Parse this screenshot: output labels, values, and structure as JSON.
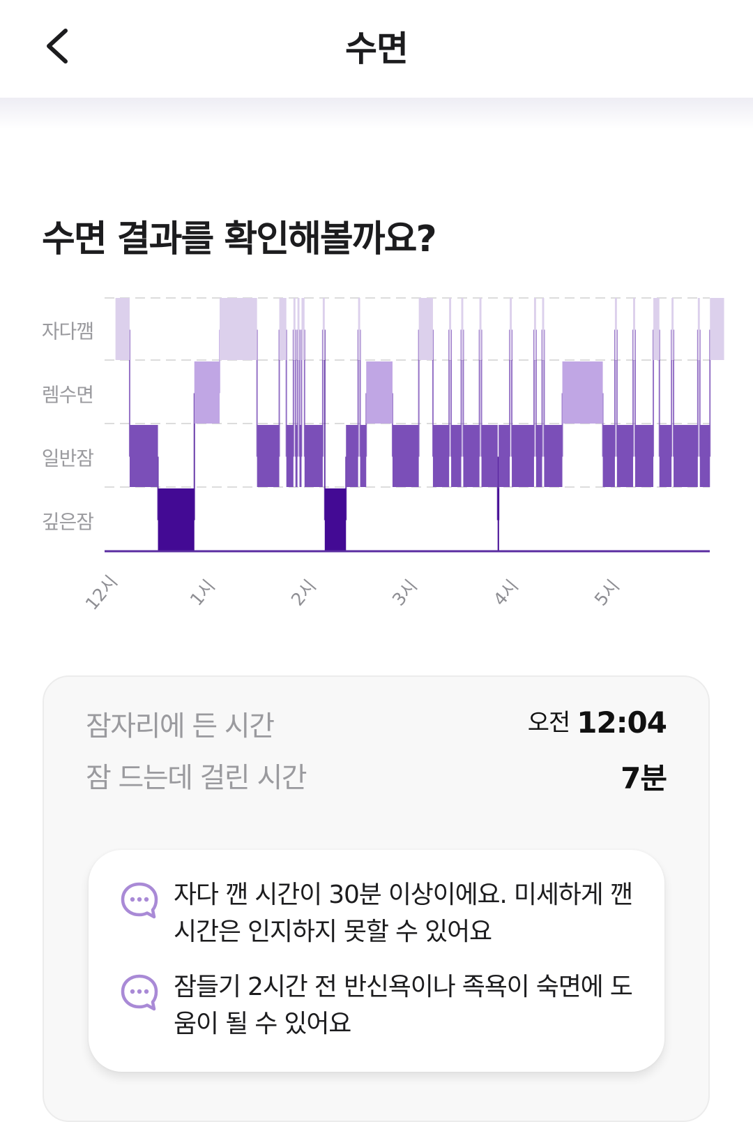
{
  "header": {
    "title": "수면",
    "back_icon": "chevron-left-icon"
  },
  "section_title": "수면 결과를 확인해볼까요?",
  "colors": {
    "awake": "#dcd0ec",
    "rem": "#c0a6e4",
    "light": "#7b4fb8",
    "deep": "#430a94",
    "grid": "#dcdcdc",
    "baseline": "#5a2ca0"
  },
  "chart_data": {
    "type": "bar",
    "stages": [
      "자다깸",
      "렘수면",
      "일반잠",
      "깊은잠"
    ],
    "x_ticks": [
      {
        "label": "12시",
        "hour": 0
      },
      {
        "label": "1시",
        "hour": 1
      },
      {
        "label": "2시",
        "hour": 2
      },
      {
        "label": "3시",
        "hour": 3
      },
      {
        "label": "4시",
        "hour": 4
      },
      {
        "label": "5시",
        "hour": 5
      }
    ],
    "x_range": [
      -0.03,
      5.99
    ],
    "segments": [
      {
        "stage": "자다깸",
        "start": -0.03,
        "end": 0.11
      },
      {
        "stage": "일반잠",
        "start": 0.11,
        "end": 0.39
      },
      {
        "stage": "깊은잠",
        "start": 0.39,
        "end": 0.75
      },
      {
        "stage": "렘수면",
        "start": 0.75,
        "end": 1.0
      },
      {
        "stage": "자다깸",
        "start": 1.0,
        "end": 1.37
      },
      {
        "stage": "일반잠",
        "start": 1.37,
        "end": 1.59
      },
      {
        "stage": "자다깸",
        "start": 1.59,
        "end": 1.66
      },
      {
        "stage": "일반잠",
        "start": 1.66,
        "end": 1.73
      },
      {
        "stage": "자다깸",
        "start": 1.73,
        "end": 1.75
      },
      {
        "stage": "일반잠",
        "start": 1.75,
        "end": 1.77
      },
      {
        "stage": "자다깸",
        "start": 1.77,
        "end": 1.79
      },
      {
        "stage": "일반잠",
        "start": 1.79,
        "end": 1.81
      },
      {
        "stage": "자다깸",
        "start": 1.81,
        "end": 1.84
      },
      {
        "stage": "일반잠",
        "start": 1.84,
        "end": 2.02
      },
      {
        "stage": "자다깸",
        "start": 2.02,
        "end": 2.04
      },
      {
        "stage": "깊은잠",
        "start": 2.04,
        "end": 2.25
      },
      {
        "stage": "일반잠",
        "start": 2.25,
        "end": 2.37
      },
      {
        "stage": "자다깸",
        "start": 2.37,
        "end": 2.39
      },
      {
        "stage": "일반잠",
        "start": 2.39,
        "end": 2.45
      },
      {
        "stage": "렘수면",
        "start": 2.45,
        "end": 2.71
      },
      {
        "stage": "일반잠",
        "start": 2.71,
        "end": 2.97
      },
      {
        "stage": "자다깸",
        "start": 2.97,
        "end": 3.11
      },
      {
        "stage": "일반잠",
        "start": 3.11,
        "end": 3.27
      },
      {
        "stage": "자다깸",
        "start": 3.27,
        "end": 3.29
      },
      {
        "stage": "일반잠",
        "start": 3.29,
        "end": 3.39
      },
      {
        "stage": "자다깸",
        "start": 3.39,
        "end": 3.41
      },
      {
        "stage": "일반잠",
        "start": 3.41,
        "end": 3.57
      },
      {
        "stage": "자다깸",
        "start": 3.57,
        "end": 3.59
      },
      {
        "stage": "일반잠",
        "start": 3.59,
        "end": 3.75
      },
      {
        "stage": "깊은잠",
        "start": 3.75,
        "end": 3.76
      },
      {
        "stage": "일반잠",
        "start": 3.76,
        "end": 3.87
      },
      {
        "stage": "자다깸",
        "start": 3.87,
        "end": 3.89
      },
      {
        "stage": "일반잠",
        "start": 3.89,
        "end": 4.11
      },
      {
        "stage": "자다깸",
        "start": 4.11,
        "end": 4.13
      },
      {
        "stage": "일반잠",
        "start": 4.13,
        "end": 4.19
      },
      {
        "stage": "자다깸",
        "start": 4.19,
        "end": 4.21
      },
      {
        "stage": "일반잠",
        "start": 4.21,
        "end": 4.39
      },
      {
        "stage": "렘수면",
        "start": 4.39,
        "end": 4.79
      },
      {
        "stage": "일반잠",
        "start": 4.79,
        "end": 4.91
      },
      {
        "stage": "자다깸",
        "start": 4.91,
        "end": 4.93
      },
      {
        "stage": "일반잠",
        "start": 4.93,
        "end": 5.09
      },
      {
        "stage": "자다깸",
        "start": 5.09,
        "end": 5.11
      },
      {
        "stage": "일반잠",
        "start": 5.11,
        "end": 5.29
      },
      {
        "stage": "자다깸",
        "start": 5.29,
        "end": 5.35
      },
      {
        "stage": "일반잠",
        "start": 5.35,
        "end": 5.47
      },
      {
        "stage": "자다깸",
        "start": 5.47,
        "end": 5.49
      },
      {
        "stage": "일반잠",
        "start": 5.49,
        "end": 5.73
      },
      {
        "stage": "자다깸",
        "start": 5.73,
        "end": 5.75
      },
      {
        "stage": "일반잠",
        "start": 5.75,
        "end": 5.85
      },
      {
        "stage": "자다깸",
        "start": 5.85,
        "end": 5.99
      }
    ]
  },
  "summary": {
    "bedtime_label": "잠자리에 든 시간",
    "bedtime_ampm": "오전",
    "bedtime_value": "12:04",
    "latency_label": "잠 드는데 걸린 시간",
    "latency_value": "7분"
  },
  "tips": [
    {
      "icon": "chat-bubble-icon",
      "text": "자다 깬 시간이 30분 이상이에요. 미세하게 깬 시간은 인지하지 못할 수 있어요"
    },
    {
      "icon": "chat-bubble-icon",
      "text": "잠들기 2시간 전 반신욕이나 족욕이 숙면에 도움이 될 수 있어요"
    }
  ]
}
